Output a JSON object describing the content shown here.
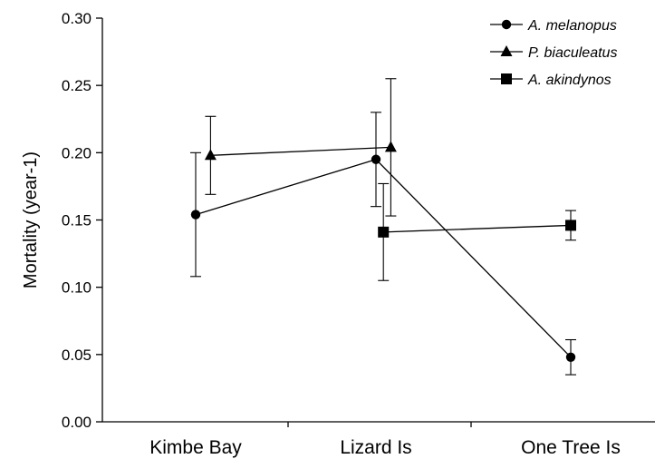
{
  "chart_data": {
    "type": "line",
    "title": "",
    "xlabel": "",
    "ylabel": "Mortality (year-1)",
    "ylim": [
      0,
      0.3
    ],
    "yticks": [
      "0.00",
      "0.05",
      "0.10",
      "0.15",
      "0.20",
      "0.25",
      "0.30"
    ],
    "categories": [
      "Kimbe Bay",
      "Lizard Is",
      "One Tree Is"
    ],
    "grid": false,
    "legend_position": "top-right",
    "series": [
      {
        "name": "A. melanopus",
        "marker": "circle",
        "points": [
          {
            "category": "Kimbe Bay",
            "x_offset": 0.0,
            "y": 0.154,
            "err_low": 0.108,
            "err_high": 0.2
          },
          {
            "category": "Lizard Is",
            "x_offset": 0.0,
            "y": 0.195,
            "err_low": 0.16,
            "err_high": 0.23
          },
          {
            "category": "One Tree Is",
            "x_offset": 0.0,
            "y": 0.048,
            "err_low": 0.035,
            "err_high": 0.061
          }
        ]
      },
      {
        "name": "P. biaculeatus",
        "marker": "triangle",
        "points": [
          {
            "category": "Kimbe Bay",
            "x_offset": 0.08,
            "y": 0.198,
            "err_low": 0.169,
            "err_high": 0.227
          },
          {
            "category": "Lizard Is",
            "x_offset": 0.08,
            "y": 0.204,
            "err_low": 0.153,
            "err_high": 0.255
          }
        ]
      },
      {
        "name": "A. akindynos",
        "marker": "square",
        "points": [
          {
            "category": "Lizard Is",
            "x_offset": 0.04,
            "y": 0.141,
            "err_low": 0.105,
            "err_high": 0.177
          },
          {
            "category": "One Tree Is",
            "x_offset": 0.0,
            "y": 0.146,
            "err_low": 0.135,
            "err_high": 0.157
          }
        ]
      }
    ]
  }
}
